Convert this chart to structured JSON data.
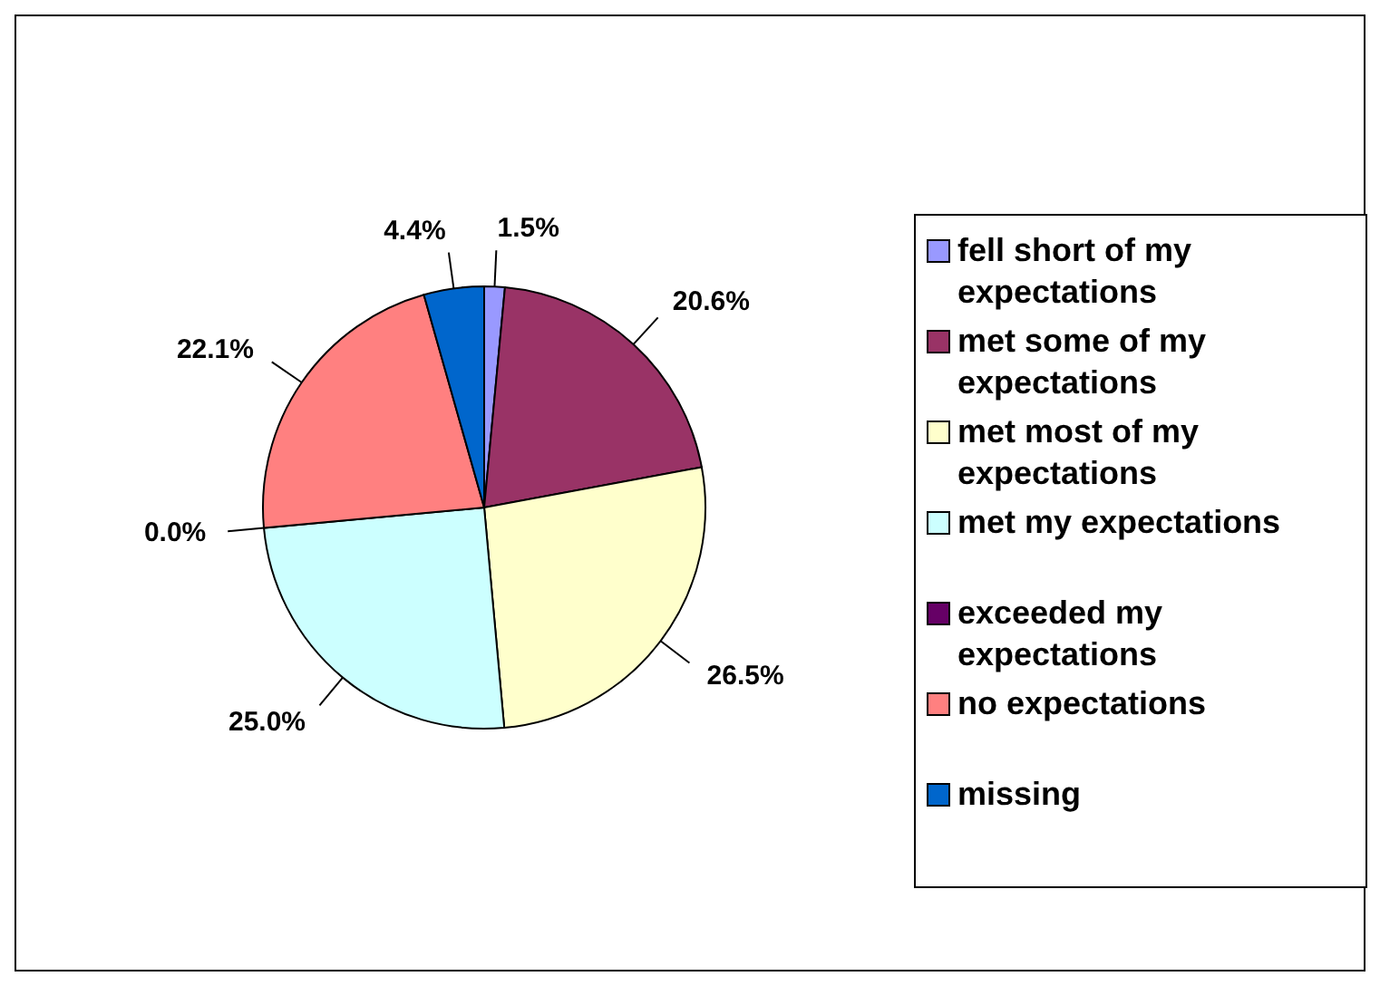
{
  "chart_data": {
    "type": "pie",
    "categories": [
      "fell short of my expectations",
      "met some of my expectations",
      "met most of my expectations",
      "met my expectations",
      "exceeded my expectations",
      "no expectations",
      "missing"
    ],
    "values": [
      1.5,
      20.6,
      26.5,
      25.0,
      0.0,
      22.1,
      4.4
    ],
    "value_labels": [
      "1.5%",
      "20.6%",
      "26.5%",
      "25.0%",
      "0.0%",
      "22.1%",
      "4.4%"
    ],
    "colors": [
      "#9999ff",
      "#993366",
      "#ffffcc",
      "#ccffff",
      "#660066",
      "#ff8080",
      "#0066cc"
    ],
    "legend": "right"
  }
}
